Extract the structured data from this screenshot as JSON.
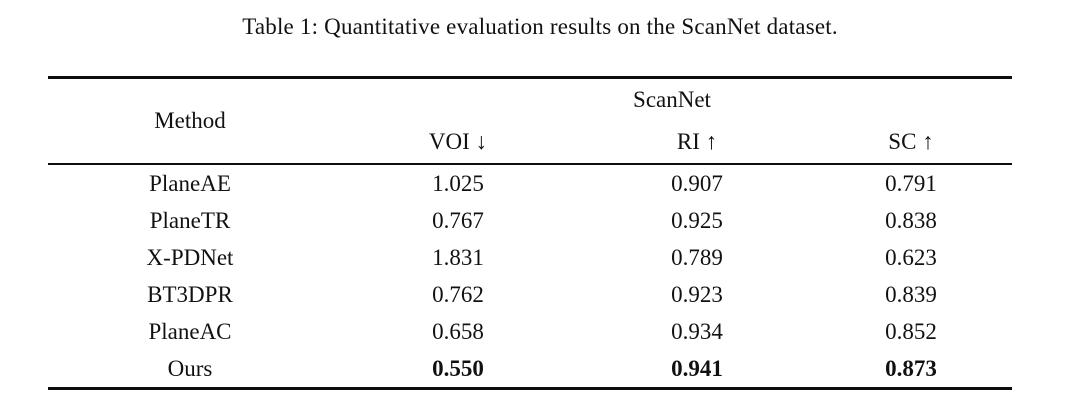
{
  "page": {
    "background_color": "#ffffff",
    "text_color": "#111111",
    "rule_color": "#0d0d0d"
  },
  "caption": "Table 1: Quantitative evaluation results on the ScanNet dataset.",
  "table": {
    "method_header": "Method",
    "group_header": "ScanNet",
    "metric_headers": [
      "VOI ↓",
      "RI ↑",
      "SC ↑"
    ],
    "rows": [
      {
        "method": "PlaneAE",
        "values": [
          "1.025",
          "0.907",
          "0.791"
        ],
        "bold_values": false
      },
      {
        "method": "PlaneTR",
        "values": [
          "0.767",
          "0.925",
          "0.838"
        ],
        "bold_values": false
      },
      {
        "method": "X-PDNet",
        "values": [
          "1.831",
          "0.789",
          "0.623"
        ],
        "bold_values": false
      },
      {
        "method": "BT3DPR",
        "values": [
          "0.762",
          "0.923",
          "0.839"
        ],
        "bold_values": false
      },
      {
        "method": "PlaneAC",
        "values": [
          "0.658",
          "0.934",
          "0.852"
        ],
        "bold_values": false
      },
      {
        "method": "Ours",
        "values": [
          "0.550",
          "0.941",
          "0.873"
        ],
        "bold_values": true
      }
    ]
  }
}
